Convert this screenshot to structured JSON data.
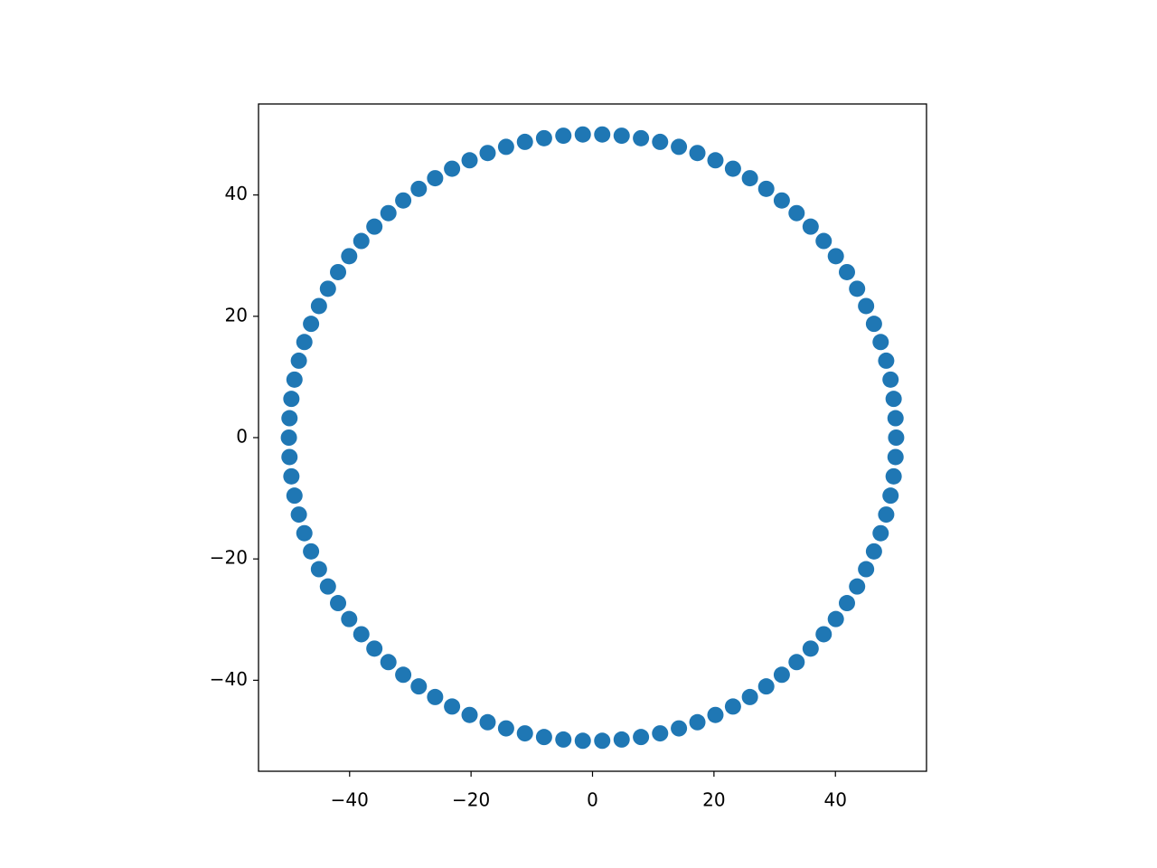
{
  "chart_data": {
    "type": "scatter",
    "color": "#1f77b4",
    "x": [
      50,
      49.9,
      49.59,
      49.08,
      48.36,
      47.45,
      46.35,
      45.05,
      43.57,
      41.9,
      40.07,
      38.07,
      35.92,
      33.61,
      31.17,
      28.61,
      25.92,
      23.13,
      20.24,
      17.27,
      14.23,
      11.13,
      7.98,
      4.8,
      1.6,
      -1.6,
      -4.8,
      -7.98,
      -11.13,
      -14.23,
      -17.27,
      -20.24,
      -23.13,
      -25.92,
      -28.61,
      -31.17,
      -33.61,
      -35.92,
      -38.07,
      -40.07,
      -41.9,
      -43.57,
      -45.05,
      -46.35,
      -47.45,
      -48.36,
      -49.08,
      -49.59,
      -49.9,
      -50,
      -49.9,
      -49.59,
      -49.08,
      -48.36,
      -47.45,
      -46.35,
      -45.05,
      -43.57,
      -41.9,
      -40.07,
      -38.07,
      -35.92,
      -33.61,
      -31.17,
      -28.61,
      -25.92,
      -23.13,
      -20.24,
      -17.27,
      -14.23,
      -11.13,
      -7.98,
      -4.8,
      -1.6,
      1.6,
      4.8,
      7.98,
      11.13,
      14.23,
      17.27,
      20.24,
      23.13,
      25.92,
      28.61,
      31.17,
      33.61,
      35.92,
      38.07,
      40.07,
      41.9,
      43.57,
      45.05,
      46.35,
      47.45,
      48.36,
      49.08,
      49.59,
      49.9
    ],
    "values": [
      0,
      3.2,
      6.39,
      9.56,
      12.68,
      15.76,
      18.76,
      21.69,
      24.54,
      27.28,
      29.91,
      32.41,
      34.78,
      37.01,
      39.09,
      41.01,
      42.76,
      44.33,
      45.72,
      46.92,
      47.93,
      48.75,
      49.36,
      49.77,
      49.97,
      49.97,
      49.77,
      49.36,
      48.75,
      47.93,
      46.92,
      45.72,
      44.33,
      42.76,
      41.01,
      39.09,
      37.01,
      34.78,
      32.41,
      29.91,
      27.28,
      24.54,
      21.69,
      18.76,
      15.76,
      12.68,
      9.56,
      6.39,
      3.2,
      0,
      -3.2,
      -6.39,
      -9.56,
      -12.68,
      -15.76,
      -18.76,
      -21.69,
      -24.54,
      -27.28,
      -29.91,
      -32.41,
      -34.78,
      -37.01,
      -39.09,
      -41.01,
      -42.76,
      -44.33,
      -45.72,
      -46.92,
      -47.93,
      -48.75,
      -49.36,
      -49.77,
      -49.97,
      -49.97,
      -49.77,
      -49.36,
      -48.75,
      -47.93,
      -46.92,
      -45.72,
      -44.33,
      -42.76,
      -41.01,
      -39.09,
      -37.01,
      -34.78,
      -32.41,
      -29.91,
      -27.28,
      -24.54,
      -21.69,
      -18.76,
      -15.76,
      -12.68,
      -9.56,
      -6.39,
      -3.2
    ],
    "xlim": [
      -55,
      55
    ],
    "ylim": [
      -55,
      55
    ],
    "xticks": [
      {
        "value": -40,
        "label": "−40"
      },
      {
        "value": -20,
        "label": "−20"
      },
      0,
      20,
      40
    ],
    "yticks": [
      {
        "value": -40,
        "label": "−40"
      },
      {
        "value": -20,
        "label": "−20"
      },
      0,
      20,
      40
    ],
    "grid": false
  }
}
